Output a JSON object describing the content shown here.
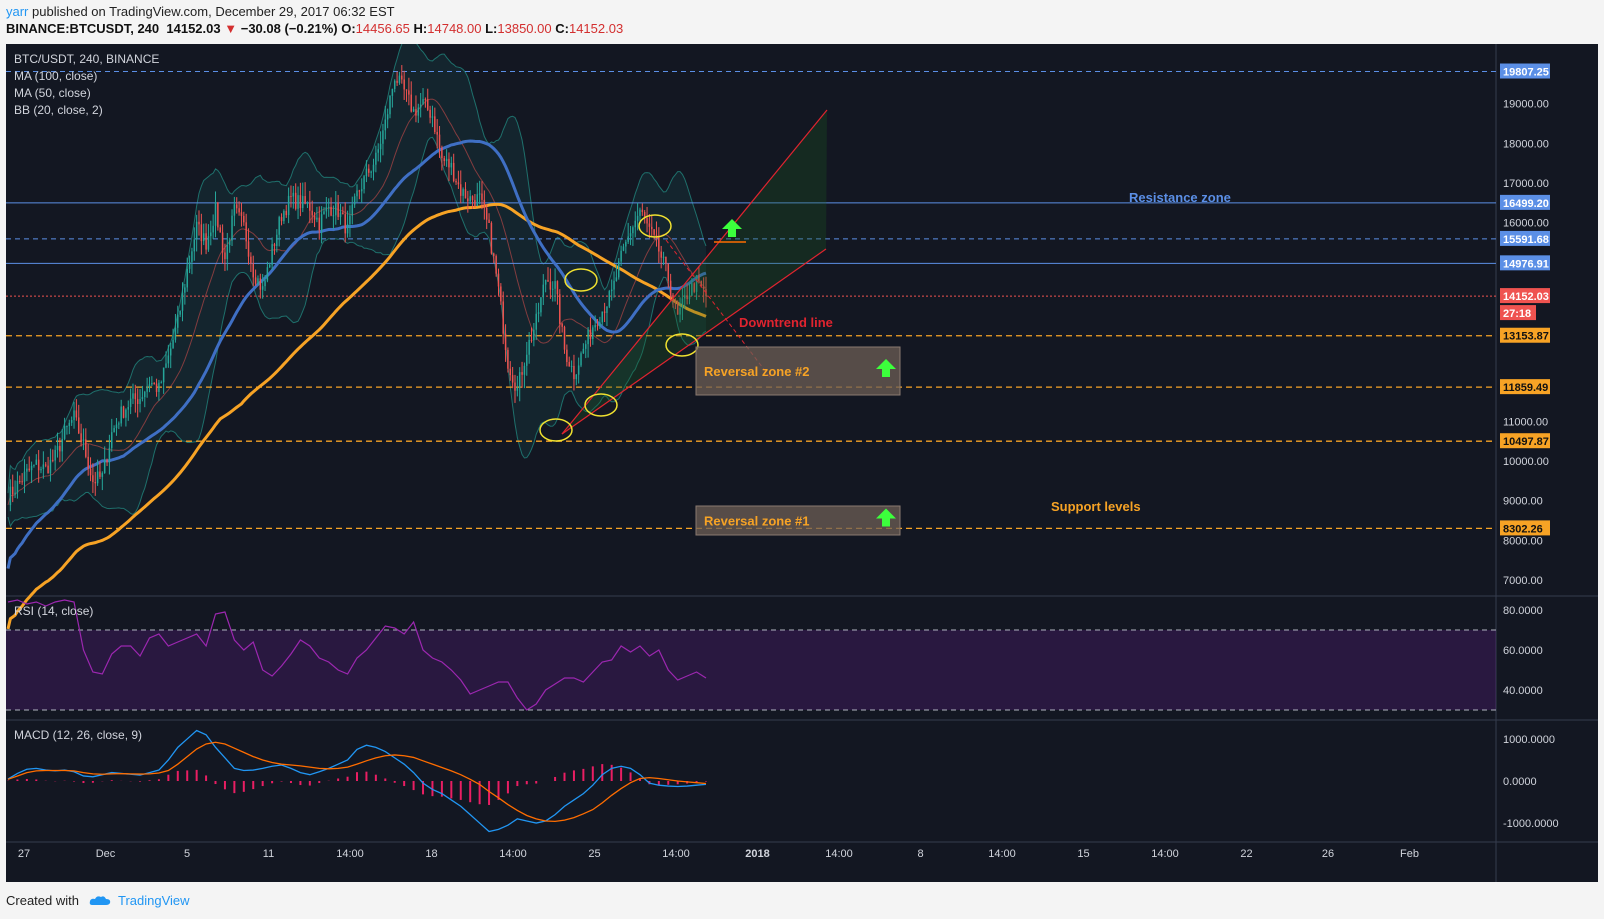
{
  "header": {
    "user": "yarr",
    "published": "published on TradingView.com, December 29, 2017 06:32 EST",
    "symbol": "BINANCE:BTCUSDT, 240",
    "last": "14152.03",
    "change_arrow": "▼",
    "change": "−30.08 (−0.21%)",
    "o_label": "O:",
    "o": "14456.65",
    "h_label": "H:",
    "h": "14748.00",
    "l_label": "L:",
    "l": "13850.00",
    "c_label": "C:",
    "c": "14152.03"
  },
  "footer": {
    "created_with": "Created with",
    "brand": "TradingView"
  },
  "colors": {
    "background": "#131722",
    "bull": "#26a69a",
    "bear": "#ef5350",
    "ma100": "#f7a325",
    "ma50": "#3f6fc4",
    "bb": "#1a6b67",
    "support": "#f7a325",
    "resistance": "#5b8fe6",
    "trend": "#e0242f",
    "rsi": "#9c27b0",
    "macd": "#2196f3",
    "signal": "#ff6d00",
    "hist": "#e91e63"
  },
  "chart_data": {
    "type": "candlestick",
    "title": "BTC/USDT, 240, BINANCE",
    "indicators": [
      "MA (100, close)",
      "MA (50, close)",
      "BB (20, close, 2)"
    ],
    "price_axis": {
      "ticks": [
        "19000.00",
        "18000.00",
        "17000.00",
        "16000.00",
        "11000.00",
        "10000.00",
        "9000.00",
        "8000.00",
        "7000.00"
      ],
      "range": [
        6600,
        20500
      ]
    },
    "time_axis": {
      "ticks": [
        "27",
        "Dec",
        "5",
        "11",
        "14:00",
        "18",
        "14:00",
        "25",
        "14:00",
        "2018",
        "14:00",
        "8",
        "14:00",
        "15",
        "14:00",
        "22",
        "26",
        "Feb"
      ]
    },
    "price_labels": [
      {
        "value": "19807.25",
        "kind": "blue"
      },
      {
        "value": "16499.20",
        "kind": "blue"
      },
      {
        "value": "15591.68",
        "kind": "blue"
      },
      {
        "value": "14976.91",
        "kind": "blue"
      },
      {
        "value": "14152.03",
        "kind": "last"
      },
      {
        "value": "27:18",
        "kind": "countdown"
      },
      {
        "value": "13153.87",
        "kind": "orange"
      },
      {
        "value": "11859.49",
        "kind": "orange"
      },
      {
        "value": "10497.87",
        "kind": "orange"
      },
      {
        "value": "8302.26",
        "kind": "orange"
      }
    ],
    "annotations": {
      "resistance_zone": "Resistance zone",
      "support_levels": "Support levels",
      "downtrend_line": "Downtrend line",
      "reversal_zone_2": "Reversal zone #2",
      "reversal_zone_1": "Reversal zone #1"
    },
    "price_path": [
      9100,
      9400,
      9700,
      9900,
      9800,
      10100,
      10700,
      11100,
      10400,
      9500,
      9600,
      10700,
      11200,
      11500,
      11600,
      12000,
      11800,
      12600,
      13500,
      14800,
      15900,
      15500,
      16300,
      15100,
      16300,
      15900,
      14800,
      14300,
      15300,
      16200,
      16600,
      16500,
      16400,
      16000,
      16400,
      16300,
      15800,
      16700,
      17200,
      17600,
      18500,
      19700,
      19300,
      18800,
      19000,
      18700,
      17600,
      17400,
      16800,
      16600,
      16600,
      15800,
      14300,
      12500,
      11800,
      12800,
      13500,
      14600,
      14400,
      12800,
      12200,
      12800,
      13400,
      13800,
      14200,
      15100,
      15800,
      16300,
      15800,
      15300,
      14600,
      13600,
      14200,
      14500,
      14152
    ],
    "rsi": {
      "title": "RSI (14, close)",
      "ticks": [
        "80.0000",
        "60.0000",
        "40.0000"
      ],
      "range": [
        25,
        87
      ],
      "band": [
        30,
        70
      ],
      "values": [
        84,
        85,
        83,
        84,
        82,
        84,
        85,
        84,
        60,
        49,
        48,
        58,
        62,
        62,
        57,
        66,
        68,
        62,
        64,
        66,
        68,
        62,
        78,
        79,
        65,
        60,
        64,
        50,
        47,
        52,
        58,
        65,
        62,
        56,
        54,
        50,
        48,
        56,
        60,
        66,
        72,
        71,
        68,
        74,
        60,
        56,
        54,
        50,
        45,
        38,
        40,
        42,
        44,
        44,
        36,
        30,
        33,
        40,
        43,
        46,
        46,
        44,
        49,
        54,
        55,
        62,
        59,
        62,
        57,
        60,
        50,
        45,
        47,
        49,
        46
      ]
    },
    "macd": {
      "title": "MACD (12, 26, close, 9)",
      "ticks": [
        "1000.0000",
        "0.0000",
        "-1000.0000"
      ],
      "range": [
        -1450,
        1450
      ],
      "macd": [
        50,
        180,
        280,
        300,
        260,
        240,
        260,
        220,
        120,
        100,
        150,
        200,
        180,
        160,
        140,
        200,
        260,
        500,
        800,
        1000,
        1200,
        1100,
        800,
        550,
        300,
        250,
        260,
        300,
        350,
        380,
        300,
        200,
        150,
        220,
        300,
        400,
        500,
        750,
        850,
        800,
        700,
        550,
        400,
        200,
        -50,
        -200,
        -300,
        -450,
        -600,
        -800,
        -1000,
        -1200,
        -1150,
        -1050,
        -900,
        -950,
        -1000,
        -950,
        -800,
        -600,
        -450,
        -300,
        -100,
        150,
        300,
        350,
        300,
        150,
        -50,
        -100,
        -120,
        -130,
        -120,
        -100,
        -80
      ],
      "signal": [
        40,
        120,
        200,
        240,
        250,
        250,
        250,
        240,
        200,
        170,
        160,
        170,
        175,
        170,
        165,
        170,
        190,
        250,
        400,
        580,
        760,
        880,
        920,
        880,
        780,
        680,
        580,
        500,
        440,
        400,
        380,
        360,
        330,
        300,
        290,
        300,
        330,
        400,
        480,
        550,
        600,
        620,
        600,
        560,
        480,
        400,
        320,
        240,
        150,
        40,
        -80,
        -250,
        -400,
        -560,
        -700,
        -820,
        -900,
        -950,
        -960,
        -930,
        -870,
        -780,
        -680,
        -520,
        -340,
        -180,
        -40,
        60,
        80,
        60,
        30,
        0,
        -20,
        -40,
        -60
      ]
    }
  }
}
